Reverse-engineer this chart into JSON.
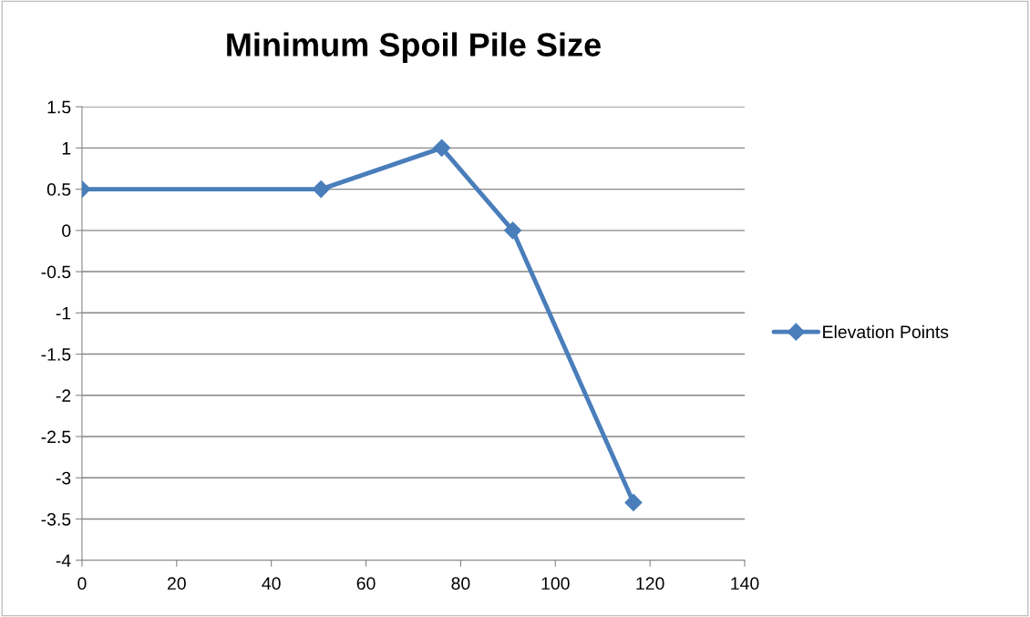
{
  "chart_data": {
    "type": "line",
    "title": "Minimum Spoil Pile Size",
    "series": [
      {
        "name": "Elevation Points",
        "color": "#4a7ebb",
        "x": [
          0,
          50.5,
          76,
          91,
          116.5
        ],
        "values": [
          0.5,
          0.5,
          1,
          0,
          -3.3
        ]
      }
    ],
    "xlim": [
      0,
      140
    ],
    "xticks": [
      0,
      20,
      40,
      60,
      80,
      100,
      120,
      140
    ],
    "ylim": [
      -4,
      1.5
    ],
    "yticks": [
      -4,
      -3.5,
      -3,
      -2.5,
      -2,
      -1.5,
      -1,
      -0.5,
      0,
      0.5,
      1,
      1.5
    ],
    "grid": "y",
    "legend": "right",
    "marker": "diamond",
    "line_style": "solid"
  }
}
